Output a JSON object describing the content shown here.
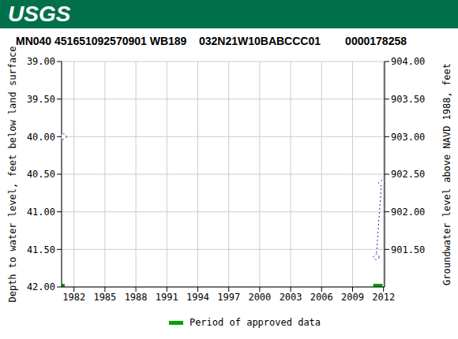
{
  "chart_data": {
    "type": "line",
    "header": "USGS",
    "title": "MN040 451651092570901 WB189    032N21W10BABCCC01        0000178258",
    "ylabel": "Depth to water level, feet below land surface",
    "y2label": "Groundwater level above NAVD 1988, feet",
    "x": [
      1981.0,
      2011.0,
      2011.3,
      2011.8
    ],
    "values": [
      40.0,
      null,
      41.6,
      40.62
    ],
    "color": "#2222bb",
    "marker": "circle",
    "line_style": "dotted",
    "xlim": [
      1980.8,
      2012.1
    ],
    "xticks": [
      1982,
      1985,
      1988,
      1991,
      1994,
      1997,
      2000,
      2003,
      2006,
      2009,
      2012
    ],
    "ylim": [
      42,
      39
    ],
    "yticks": [
      {
        "value": 39,
        "label": "39.00"
      },
      {
        "value": 39.5,
        "label": "39.50"
      },
      {
        "value": 40,
        "label": "40.00"
      },
      {
        "value": 40.5,
        "label": "40.50"
      },
      {
        "value": 41,
        "label": "41.00"
      },
      {
        "value": 41.5,
        "label": "41.50"
      },
      {
        "value": 42,
        "label": "42.00"
      }
    ],
    "y2lim": [
      901,
      904
    ],
    "y2ticks": [
      {
        "value": 901.5,
        "label": "901.50"
      },
      {
        "value": 902,
        "label": "902.00"
      },
      {
        "value": 902.5,
        "label": "902.50"
      },
      {
        "value": 903,
        "label": "903.00"
      },
      {
        "value": 903.5,
        "label": "903.50"
      },
      {
        "value": 904,
        "label": "904.00"
      }
    ],
    "grid": true,
    "series": [
      {
        "name": "Period of approved data",
        "color": "#00a000",
        "periods": [
          [
            1980.8,
            1981.1
          ],
          [
            2011.0,
            2011.9
          ]
        ]
      }
    ]
  }
}
